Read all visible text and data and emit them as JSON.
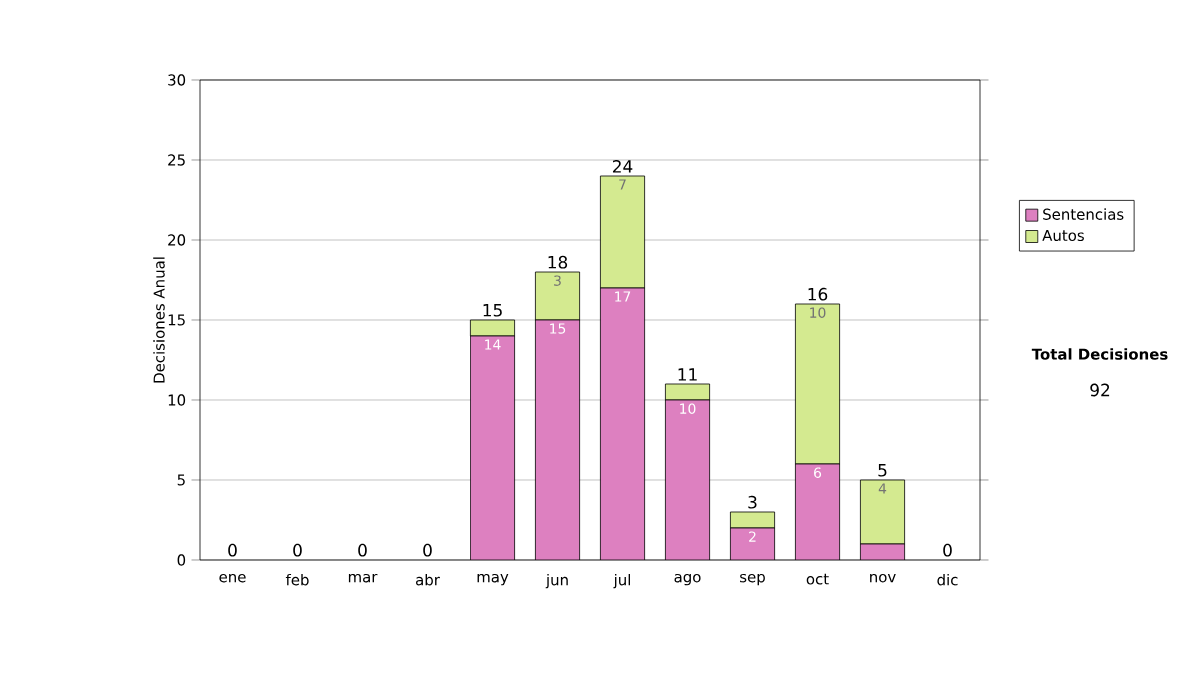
{
  "chart_data": {
    "type": "bar",
    "stacked": true,
    "ylabel": "Decisiones Anual",
    "categories": [
      "ene",
      "feb",
      "mar",
      "abr",
      "may",
      "jun",
      "jul",
      "ago",
      "sep",
      "oct",
      "nov",
      "dic"
    ],
    "series": [
      {
        "name": "Sentencias",
        "color": "#dd80c0",
        "values": [
          0,
          0,
          0,
          0,
          14,
          15,
          17,
          10,
          2,
          6,
          1,
          0
        ],
        "value_labels": [
          null,
          null,
          null,
          null,
          "14",
          "15",
          "17",
          "10",
          "2",
          "6",
          null,
          null
        ]
      },
      {
        "name": "Autos",
        "color": "#d4ea90",
        "values": [
          0,
          0,
          0,
          0,
          1,
          3,
          7,
          1,
          1,
          10,
          4,
          0
        ],
        "value_labels": [
          null,
          null,
          null,
          null,
          null,
          "3",
          "7",
          null,
          null,
          "10",
          "4",
          null
        ]
      }
    ],
    "totals": [
      "0",
      "0",
      "0",
      "0",
      "15",
      "18",
      "24",
      "11",
      "3",
      "16",
      "5",
      "0"
    ],
    "ylim": [
      0,
      30
    ],
    "yticks": [
      0,
      5,
      10,
      15,
      20,
      25,
      30
    ],
    "grid": "y",
    "legend": "right",
    "annotations": [
      "Total Decisiones",
      "92"
    ]
  }
}
